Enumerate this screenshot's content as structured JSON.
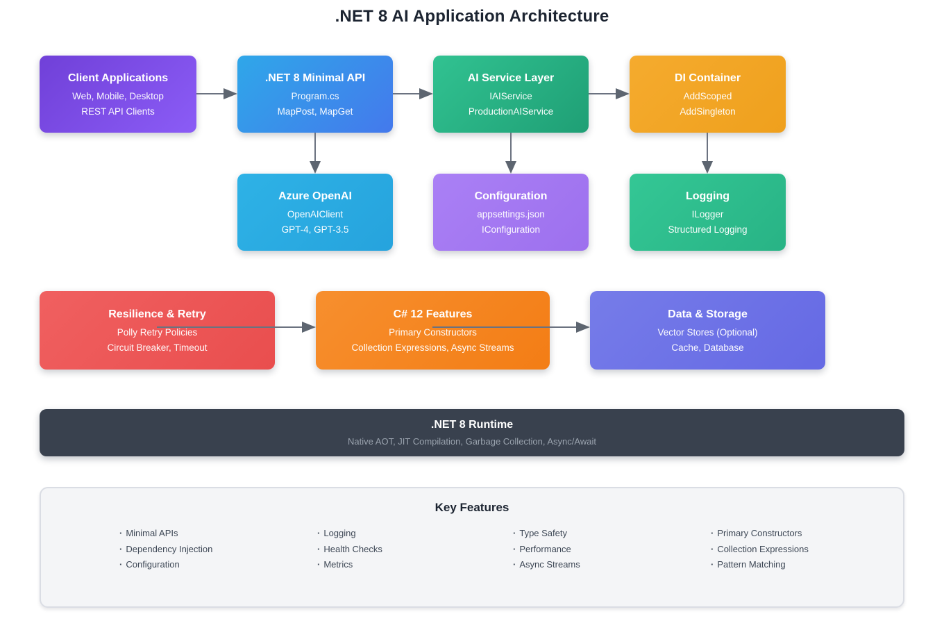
{
  "page_title": ".NET 8 AI Application Architecture",
  "nodes": {
    "client": {
      "title": "Client Applications",
      "line1": "Web, Mobile, Desktop",
      "line2": "REST API Clients",
      "bg": "linear-gradient(135deg,#7040d8,#8b5cf6)"
    },
    "minimal_api": {
      "title": ".NET 8 Minimal API",
      "line1": "Program.cs",
      "line2": "MapPost, MapGet",
      "bg": "linear-gradient(135deg,#2fa7e9,#4479ec)"
    },
    "ai_service": {
      "title": "AI Service Layer",
      "line1": "IAIService",
      "line2": "ProductionAIService",
      "bg": "linear-gradient(135deg,#31c291,#1f9f75)"
    },
    "di_container": {
      "title": "DI Container",
      "line1": "AddScoped",
      "line2": "AddSingleton",
      "bg": "linear-gradient(135deg,#f5ab2e,#efa01d)"
    },
    "azure_openai": {
      "title": "Azure OpenAI",
      "line1": "OpenAIClient",
      "line2": "GPT-4, GPT-3.5",
      "bg": "linear-gradient(135deg,#2eb2e6,#26a3dd)"
    },
    "configuration": {
      "title": "Configuration",
      "line1": "appsettings.json",
      "line2": "IConfiguration",
      "bg": "linear-gradient(135deg,#aa80f5,#9d70ee)"
    },
    "logging": {
      "title": "Logging",
      "line1": "ILogger",
      "line2": "Structured Logging",
      "bg": "linear-gradient(135deg,#34c795,#28b385)"
    },
    "resilience": {
      "title": "Resilience & Retry",
      "line1": "Polly Retry Policies",
      "line2": "Circuit Breaker, Timeout",
      "bg": "linear-gradient(135deg,#f06060,#e94e4e)"
    },
    "csharp12": {
      "title": "C# 12 Features",
      "line1": "Primary Constructors",
      "line2": "Collection Expressions, Async Streams",
      "bg": "linear-gradient(135deg,#f78f2e,#f37d15)"
    },
    "data_storage": {
      "title": "Data & Storage",
      "line1": "Vector Stores (Optional)",
      "line2": "Cache, Database",
      "bg": "linear-gradient(135deg,#767ce9,#6569e4)"
    }
  },
  "runtime": {
    "title": ".NET 8 Runtime",
    "subtitle": "Native AOT, JIT Compilation, Garbage Collection, Async/Await",
    "bg": "#39414e"
  },
  "key_features": {
    "title": "Key Features",
    "bullet": "·",
    "columns": [
      [
        "Minimal APIs",
        "Dependency Injection",
        "Configuration"
      ],
      [
        "Logging",
        "Health Checks",
        "Metrics"
      ],
      [
        "Type Safety",
        "Performance",
        "Async Streams"
      ],
      [
        "Primary Constructors",
        "Collection Expressions",
        "Pattern Matching"
      ]
    ]
  },
  "colors": {
    "arrow": "#6b7280",
    "arrow_head": "#5d6570",
    "title_text": "#1c2431",
    "feature_text": "#3d4755",
    "runtime_subtitle": "#9aa3ae",
    "features_bg": "#f4f5f7",
    "features_border": "#dadde4"
  }
}
